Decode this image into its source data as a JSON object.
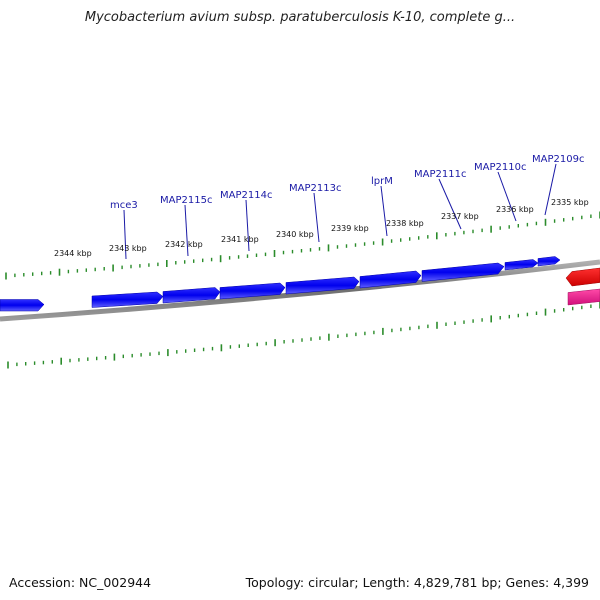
{
  "title": "Mycobacterium avium subsp. paratuberculosis K-10, complete g...",
  "footer": {
    "accession": "Accession: NC_002944",
    "topology": "Topology: circular; Length: 4,829,781 bp; Genes: 4,399"
  },
  "scale_labels": [
    "2344 kbp",
    "2343 kbp",
    "2342 kbp",
    "2341 kbp",
    "2340 kbp",
    "2339 kbp",
    "2338 kbp",
    "2337 kbp",
    "2336 kbp",
    "2335 kbp"
  ],
  "genes": [
    {
      "label": "mce3",
      "strand": "forward"
    },
    {
      "label": "MAP2115c",
      "strand": "forward"
    },
    {
      "label": "MAP2114c",
      "strand": "forward"
    },
    {
      "label": "MAP2113c",
      "strand": "forward"
    },
    {
      "label": "lprM",
      "strand": "forward"
    },
    {
      "label": "MAP2111c",
      "strand": "forward"
    },
    {
      "label": "MAP2110c",
      "strand": "forward"
    },
    {
      "label": "MAP2109c",
      "strand": "forward"
    }
  ],
  "colors": {
    "gene_forward": "#0000ee",
    "gene_reverse_red": "#ee0000",
    "gene_reverse_pink": "#ee1f8c",
    "backbone": "#808080",
    "ticks": "#2b8c2b",
    "label_line": "#1a1aa6"
  }
}
